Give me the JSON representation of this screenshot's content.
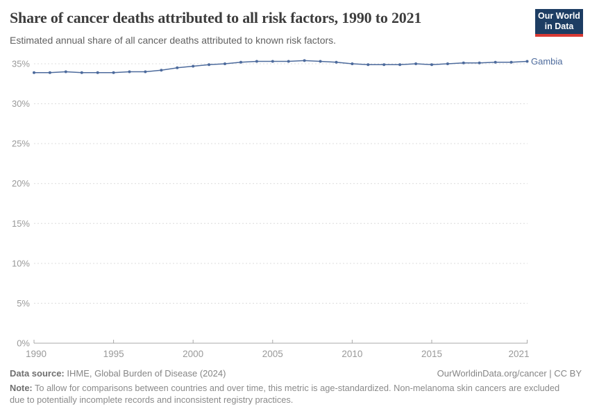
{
  "header": {
    "title": "Share of cancer deaths attributed to all risk factors, 1990 to 2021",
    "subtitle": "Estimated annual share of all cancer deaths attributed to known risk factors.",
    "logo": {
      "line1": "Our World",
      "line2": "in Data"
    }
  },
  "chart_data": {
    "type": "line",
    "title": "Share of cancer deaths attributed to all risk factors, 1990 to 2021",
    "subtitle": "Estimated annual share of all cancer deaths attributed to known risk factors.",
    "xlabel": "",
    "ylabel": "",
    "xlim": [
      1990,
      2021
    ],
    "ylim": [
      0,
      35
    ],
    "grid": "horizontal-dashed",
    "legend_position": "end-of-line-label",
    "x": [
      1990,
      1991,
      1992,
      1993,
      1994,
      1995,
      1996,
      1997,
      1998,
      1999,
      2000,
      2001,
      2002,
      2003,
      2004,
      2005,
      2006,
      2007,
      2008,
      2009,
      2010,
      2011,
      2012,
      2013,
      2014,
      2015,
      2016,
      2017,
      2018,
      2019,
      2020,
      2021
    ],
    "series": [
      {
        "name": "Gambia",
        "color": "#4c6a9c",
        "values": [
          33.9,
          33.9,
          34.0,
          33.9,
          33.9,
          33.9,
          34.0,
          34.0,
          34.2,
          34.5,
          34.7,
          34.9,
          35.0,
          35.2,
          35.3,
          35.3,
          35.3,
          35.4,
          35.3,
          35.2,
          35.0,
          34.9,
          34.9,
          34.9,
          35.0,
          34.9,
          35.0,
          35.1,
          35.1,
          35.2,
          35.2,
          35.3
        ]
      }
    ],
    "yticks": [
      {
        "value": 0,
        "label": "0%"
      },
      {
        "value": 5,
        "label": "5%"
      },
      {
        "value": 10,
        "label": "10%"
      },
      {
        "value": 15,
        "label": "15%"
      },
      {
        "value": 20,
        "label": "20%"
      },
      {
        "value": 25,
        "label": "25%"
      },
      {
        "value": 30,
        "label": "30%"
      },
      {
        "value": 35,
        "label": "35%"
      }
    ],
    "xticks": [
      {
        "value": 1990,
        "label": "1990"
      },
      {
        "value": 1995,
        "label": "1995"
      },
      {
        "value": 2000,
        "label": "2000"
      },
      {
        "value": 2005,
        "label": "2005"
      },
      {
        "value": 2010,
        "label": "2010"
      },
      {
        "value": 2015,
        "label": "2015"
      },
      {
        "value": 2021,
        "label": "2021"
      }
    ],
    "end_label": "Gambia"
  },
  "colors": {
    "line": "#4c6a9c",
    "grid": "#dcdcdc",
    "axis": "#a8a8a8",
    "tick_text": "#999999",
    "end_label_text": "#4c6a9c"
  },
  "footer": {
    "source_label": "Data source:",
    "source_text": " IHME, Global Burden of Disease (2024)",
    "rights": "OurWorldinData.org/cancer | CC BY",
    "note_label": "Note:",
    "note_text": " To allow for comparisons between countries and over time, this metric is age-standardized. Non-melanoma skin cancers are excluded due to potentially incomplete records and inconsistent registry practices."
  }
}
